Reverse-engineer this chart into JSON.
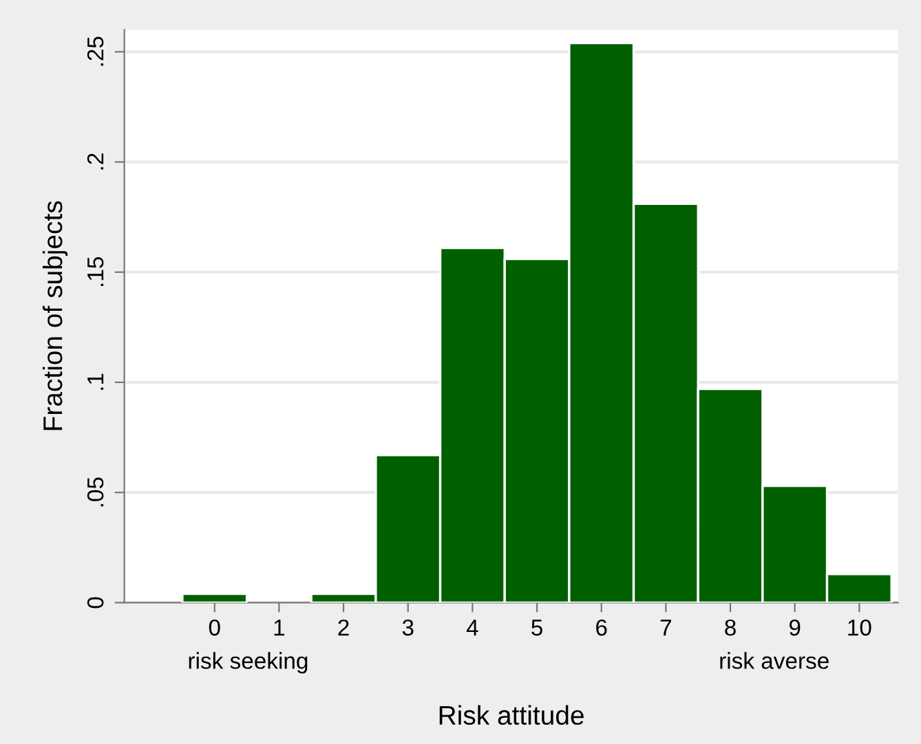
{
  "chart_data": {
    "type": "histogram",
    "xlabel": "Risk attitude",
    "ylabel": "Fraction of subjects",
    "bins": [
      -0.5,
      0.5,
      1.5,
      2.5,
      3.5,
      4.5,
      5.5,
      6.5,
      7.5,
      8.5,
      9.5,
      10.5
    ],
    "values": [
      0.004,
      0,
      0.004,
      0.067,
      0.161,
      0.156,
      0.254,
      0.181,
      0.097,
      0.053,
      0.013
    ],
    "color": "#006000",
    "xlim": [
      -1.4,
      10.6
    ],
    "xticks": [
      0,
      1,
      2,
      3,
      4,
      5,
      6,
      7,
      8,
      9,
      10
    ],
    "ylim": [
      0,
      0.26
    ],
    "yticks": [
      {
        "value": 0,
        "label": "0"
      },
      {
        "value": 0.05,
        "label": ".05"
      },
      {
        "value": 0.1,
        "label": ".1"
      },
      {
        "value": 0.15,
        "label": ".15"
      },
      {
        "value": 0.2,
        "label": ".2"
      },
      {
        "value": 0.25,
        "label": ".25"
      }
    ],
    "grid": "y",
    "annotations": [
      "risk seeking",
      "risk averse"
    ]
  }
}
